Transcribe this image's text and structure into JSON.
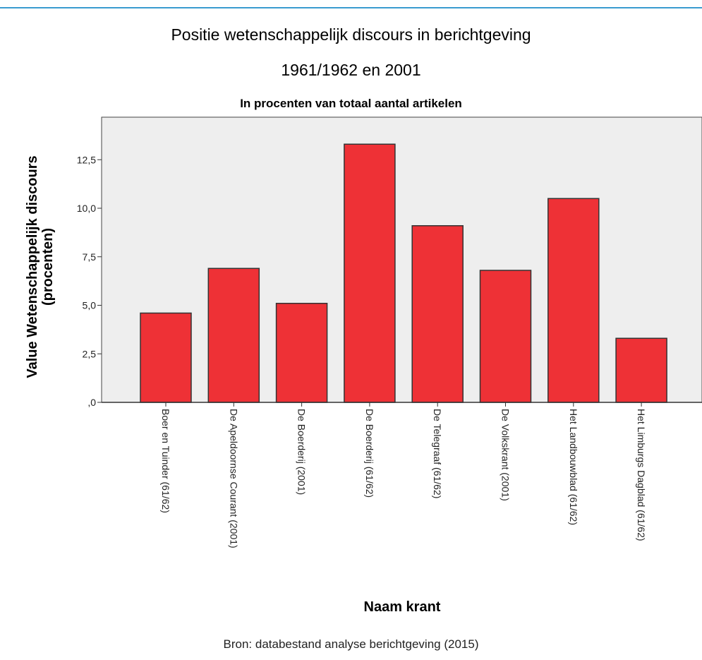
{
  "header": {
    "title": "Positie wetenschappelijk discours in berichtgeving",
    "subtitle": "1961/1962 en 2001",
    "caption": "In procenten van totaal aantal artikelen"
  },
  "footer": {
    "source": "Bron: databestand analyse berichtgeving (2015)"
  },
  "colors": {
    "bar_fill": "#ee3136",
    "bar_stroke": "#333333",
    "plot_background": "#eeeeee",
    "accent_rule": "#3a9bd0"
  },
  "chart_data": {
    "type": "bar",
    "title": "Positie wetenschappelijk discours in berichtgeving",
    "subtitle": "1961/1962 en 2001",
    "caption": "In procenten van totaal aantal artikelen",
    "xlabel": "Naam krant",
    "ylabel": "Value Wetenschappelijk discours (procenten)",
    "ylabel_lines": [
      "Value Wetenschappelijk discours",
      "(procenten)"
    ],
    "ylim": [
      0,
      14.6
    ],
    "yticks": [
      0,
      2.5,
      5.0,
      7.5,
      10.0,
      12.5
    ],
    "ytick_labels": [
      ",0",
      "2,5",
      "5,0",
      "7,5",
      "10,0",
      "12,5"
    ],
    "categories": [
      "Boer en Tuinder (61/62)",
      "De Apeldoornse Courant (2001)",
      "De Boerderij (2001)",
      "De Boerderij (61/62)",
      "De Telegraaf (61/62)",
      "De Volkskrant (2001)",
      "Het Landbouwblad (61/62)",
      "Het Limburgs Dagblad (61/62)"
    ],
    "values": [
      4.6,
      6.9,
      5.1,
      13.3,
      9.1,
      6.8,
      10.5,
      3.3
    ],
    "grid": false,
    "legend": "none"
  }
}
